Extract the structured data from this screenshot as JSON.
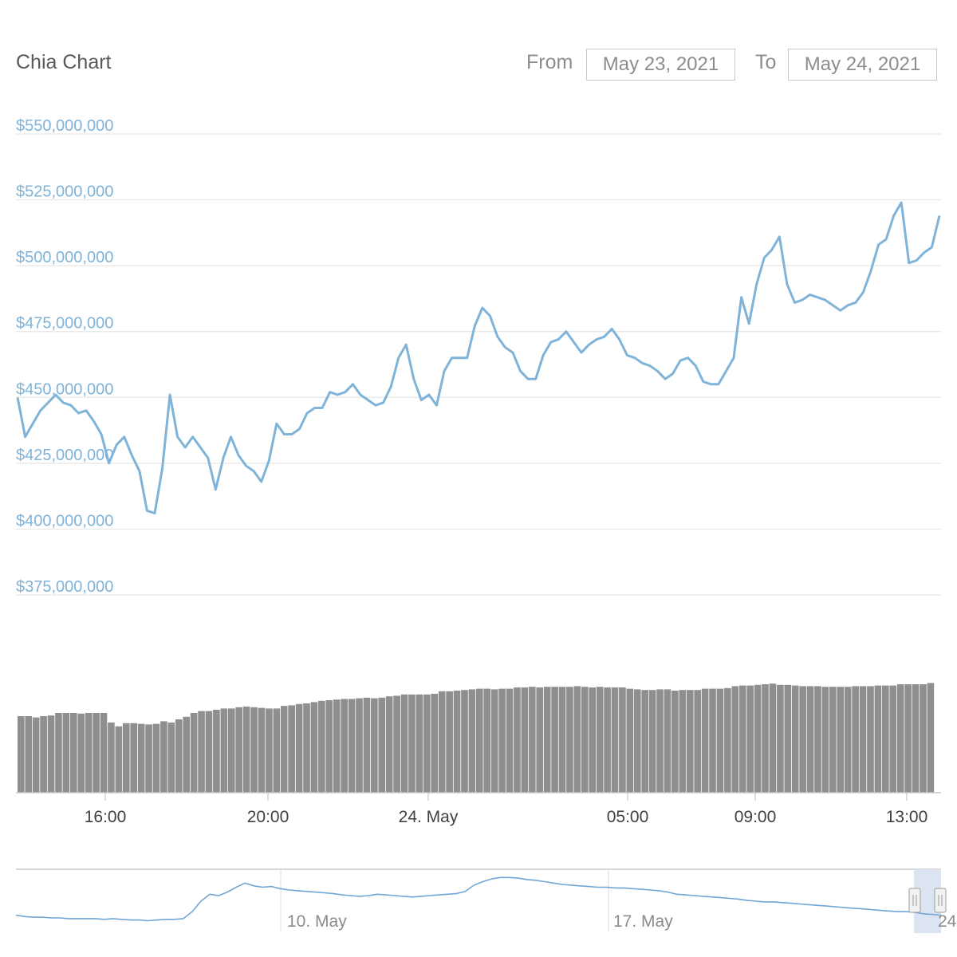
{
  "header": {
    "title": "Chia Chart",
    "from_label": "From",
    "from_value": "May 23, 2021",
    "to_label": "To",
    "to_value": "May 24, 2021"
  },
  "colors": {
    "line": "#7fb3d8",
    "volume": "#8f8f8f",
    "grid": "#e6e6e6",
    "navigator_line": "#6fa6d6",
    "navigator_mask": "#d9e1ef"
  },
  "chart_data": {
    "type": "line",
    "title": "",
    "series": [
      {
        "values": [
          450,
          435,
          440,
          445,
          448,
          451,
          448,
          447,
          444,
          445,
          441,
          436,
          425,
          432,
          435,
          428,
          422,
          407,
          406,
          423,
          451,
          435,
          431,
          435,
          431,
          427,
          415,
          427,
          435,
          428,
          424,
          422,
          418,
          426,
          440,
          436,
          436,
          438,
          444,
          446,
          446,
          452,
          451,
          452,
          455,
          451,
          449,
          447,
          448,
          454,
          465,
          470,
          457,
          449,
          451,
          447,
          460,
          465,
          465,
          465,
          477,
          484,
          481,
          473,
          469,
          467,
          460,
          457,
          457,
          466,
          471,
          472,
          475,
          471,
          467,
          470,
          472,
          473,
          476,
          472,
          466,
          465,
          463,
          462,
          460,
          457,
          459,
          464,
          465,
          462,
          456,
          455,
          455,
          460,
          465,
          488,
          478,
          493,
          503,
          506,
          511,
          493,
          486,
          487,
          489,
          488,
          487,
          485,
          483,
          485,
          486,
          490,
          498,
          508,
          510,
          519,
          524,
          501,
          502,
          505,
          507,
          519
        ]
      }
    ],
    "x_range": [
      "2021-05-23 13:50",
      "2021-05-24 13:50"
    ],
    "ylim": [
      375000000,
      550000000
    ],
    "y_ticks": [
      "$375,000,000",
      "$400,000,000",
      "$425,000,000",
      "$450,000,000",
      "$475,000,000",
      "$500,000,000",
      "$525,000,000",
      "$550,000,000"
    ],
    "x_ticks": [
      "16:00",
      "20:00",
      "24. May",
      "05:00",
      "09:00",
      "13:00"
    ],
    "volume": [
      420,
      420,
      418,
      420,
      421,
      425,
      425,
      425,
      424,
      425,
      425,
      425,
      410,
      404,
      409,
      409,
      408,
      407,
      408,
      412,
      410,
      415,
      419,
      425,
      428,
      428,
      430,
      432,
      432,
      434,
      435,
      434,
      433,
      432,
      432,
      436,
      437,
      439,
      440,
      442,
      444,
      445,
      446,
      447,
      447,
      448,
      449,
      448,
      449,
      451,
      452,
      454,
      454,
      454,
      454,
      455,
      459,
      459,
      460,
      461,
      462,
      463,
      463,
      462,
      463,
      463,
      465,
      465,
      466,
      465,
      466,
      466,
      466,
      466,
      467,
      466,
      465,
      466,
      465,
      465,
      465,
      463,
      462,
      461,
      461,
      462,
      462,
      460,
      461,
      461,
      461,
      463,
      463,
      463,
      464,
      467,
      468,
      468,
      469,
      470,
      471,
      469,
      469,
      468,
      467,
      467,
      467,
      466,
      466,
      466,
      466,
      467,
      467,
      467,
      468,
      468,
      468,
      470,
      470,
      470,
      470,
      472
    ],
    "navigator": {
      "x_ticks": [
        "10. May",
        "17. May",
        "24"
      ],
      "values": [
        390,
        388,
        387,
        387,
        386,
        386,
        385,
        385,
        385,
        385,
        384,
        385,
        384,
        383,
        383,
        382,
        383,
        384,
        384,
        385,
        395,
        410,
        420,
        418,
        423,
        430,
        436,
        432,
        430,
        431,
        428,
        426,
        425,
        424,
        423,
        422,
        421,
        419,
        418,
        417,
        418,
        420,
        419,
        418,
        417,
        416,
        417,
        418,
        419,
        420,
        421,
        424,
        433,
        438,
        442,
        444,
        444,
        443,
        441,
        440,
        438,
        436,
        434,
        433,
        432,
        431,
        430,
        430,
        429,
        429,
        428,
        427,
        426,
        425,
        423,
        420,
        419,
        418,
        417,
        416,
        415,
        414,
        413,
        411,
        410,
        409,
        409,
        408,
        407,
        406,
        405,
        404,
        403,
        402,
        401,
        400,
        399,
        398,
        397,
        396,
        395,
        395,
        394,
        392,
        391,
        390
      ]
    }
  }
}
